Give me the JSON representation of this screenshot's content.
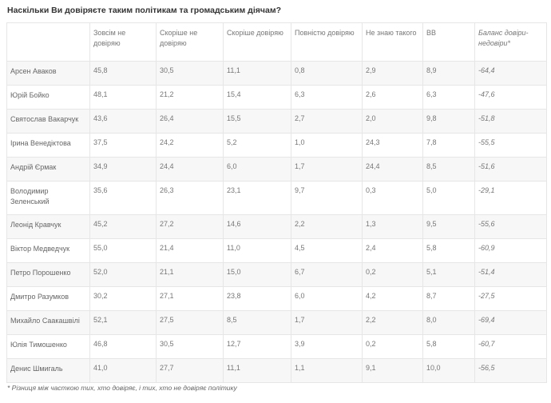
{
  "title": "Наскільки Ви довіряєте таким політикам та громадським діячам?",
  "columns": [
    "",
    "Зовсім не довіряю",
    "Скоріше не довіряю",
    "Скоріше довіряю",
    "Повністю довіряю",
    "Не знаю такого",
    "ВВ",
    "Баланс довіри-недовіри*"
  ],
  "rows": [
    [
      "Арсен Аваков",
      "45,8",
      "30,5",
      "11,1",
      "0,8",
      "2,9",
      "8,9",
      "-64,4"
    ],
    [
      "Юрій Бойко",
      "48,1",
      "21,2",
      "15,4",
      "6,3",
      "2,6",
      "6,3",
      "-47,6"
    ],
    [
      "Святослав Вакарчук",
      "43,6",
      "26,4",
      "15,5",
      "2,7",
      "2,0",
      "9,8",
      "-51,8"
    ],
    [
      "Ірина Венедіктова",
      "37,5",
      "24,2",
      "5,2",
      "1,0",
      "24,3",
      "7,8",
      "-55,5"
    ],
    [
      "Андрій Єрмак",
      "34,9",
      "24,4",
      "6,0",
      "1,7",
      "24,4",
      "8,5",
      "-51,6"
    ],
    [
      "Володимир Зеленський",
      "35,6",
      "26,3",
      "23,1",
      "9,7",
      "0,3",
      "5,0",
      "-29,1"
    ],
    [
      "Леонід Кравчук",
      "45,2",
      "27,2",
      "14,6",
      "2,2",
      "1,3",
      "9,5",
      "-55,6"
    ],
    [
      "Віктор Медведчук",
      "55,0",
      "21,4",
      "11,0",
      "4,5",
      "2,4",
      "5,8",
      "-60,9"
    ],
    [
      "Петро Порошенко",
      "52,0",
      "21,1",
      "15,0",
      "6,7",
      "0,2",
      "5,1",
      "-51,4"
    ],
    [
      "Дмитро Разумков",
      "30,2",
      "27,1",
      "23,8",
      "6,0",
      "4,2",
      "8,7",
      "-27,5"
    ],
    [
      "Михайло Саакашвілі",
      "52,1",
      "27,5",
      "8,5",
      "1,7",
      "2,2",
      "8,0",
      "-69,4"
    ],
    [
      "Юлія Тимошенко",
      "46,8",
      "30,5",
      "12,7",
      "3,9",
      "0,2",
      "5,8",
      "-60,7"
    ],
    [
      "Денис Шмигаль",
      "41,0",
      "27,7",
      "11,1",
      "1,1",
      "9,1",
      "10,0",
      "-56,5"
    ]
  ],
  "footnote": "* Різниця між часткою тих, хто довіряє, і тих, хто не довіряє політику"
}
